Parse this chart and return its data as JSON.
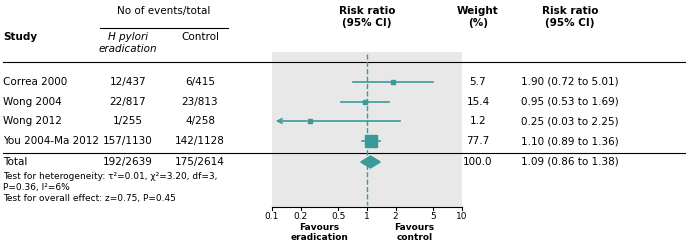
{
  "studies": [
    "Correa 2000",
    "Wong 2004",
    "Wong 2012",
    "You 2004-Ma 2012",
    "Total"
  ],
  "hp_events": [
    "12/437",
    "22/817",
    "1/255",
    "157/1130",
    "192/2639"
  ],
  "ctrl_events": [
    "6/415",
    "23/813",
    "4/258",
    "142/1128",
    "175/2614"
  ],
  "rr": [
    1.9,
    0.95,
    0.25,
    1.1,
    1.09
  ],
  "ci_low": [
    0.72,
    0.53,
    0.03,
    0.89,
    0.86
  ],
  "ci_high": [
    5.01,
    1.69,
    2.25,
    1.36,
    1.38
  ],
  "weights": [
    5.7,
    15.4,
    1.2,
    77.7,
    100.0
  ],
  "weight_labels": [
    "5.7",
    "15.4",
    "1.2",
    "77.7",
    "100.0"
  ],
  "rr_labels": [
    "1.90 (0.72 to 5.01)",
    "0.95 (0.53 to 1.69)",
    "0.25 (0.03 to 2.25)",
    "1.10 (0.89 to 1.36)",
    "1.09 (0.86 to 1.38)"
  ],
  "is_total": [
    false,
    false,
    false,
    false,
    true
  ],
  "teal_color": "#3a9a9a",
  "bg_color": "#e8e8e8",
  "footnote1": "Test for heterogeneity: τ²=0.01, χ²=3.20, df=3,",
  "footnote2": "P=0.36, I²=6%",
  "footnote3": "Test for overall effect: z=0.75, P=0.45",
  "favours_left": "Favours\neradication",
  "favours_right": "Favours\ncontrol"
}
